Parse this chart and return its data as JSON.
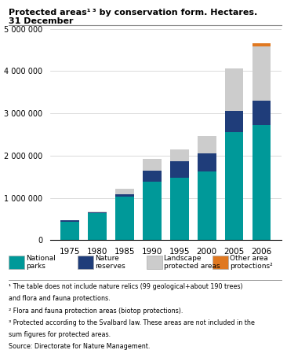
{
  "years": [
    "1975",
    "1980",
    "1985",
    "1990",
    "1995",
    "2000",
    "2005",
    "2006"
  ],
  "national_parks": [
    440000,
    630000,
    1020000,
    1380000,
    1480000,
    1620000,
    2560000,
    2720000
  ],
  "nature_reserves": [
    25000,
    35000,
    60000,
    260000,
    380000,
    430000,
    490000,
    580000
  ],
  "landscape_protected": [
    5000,
    10000,
    140000,
    280000,
    280000,
    420000,
    1010000,
    1290000
  ],
  "other_area": [
    0,
    0,
    0,
    0,
    0,
    0,
    12000,
    65000
  ],
  "colors": {
    "national_parks": "#009999",
    "nature_reserves": "#1f3d7a",
    "landscape_protected": "#cccccc",
    "other_area": "#e07820"
  },
  "ylim": [
    0,
    5000000
  ],
  "yticks": [
    0,
    1000000,
    2000000,
    3000000,
    4000000,
    5000000
  ],
  "ytick_labels": [
    "0",
    "1 000 000",
    "2 000 000",
    "3 000 000",
    "4 000 000",
    "5 000 000"
  ],
  "legend_labels": [
    "National\nparks",
    "Nature\nreserves",
    "Landscape\nprotected areas",
    "Other area\nprotections²"
  ],
  "footnotes": [
    "¹ The table does not include nature relics (99 geological+about 190 trees)",
    "and flora and fauna protections.",
    "² Flora and fauna protection areas (biotop protections).",
    "³ Protected according to the Svalbard law. These areas are not included in the",
    "sum figures for protected areas.",
    "Source: Directorate for Nature Management."
  ]
}
